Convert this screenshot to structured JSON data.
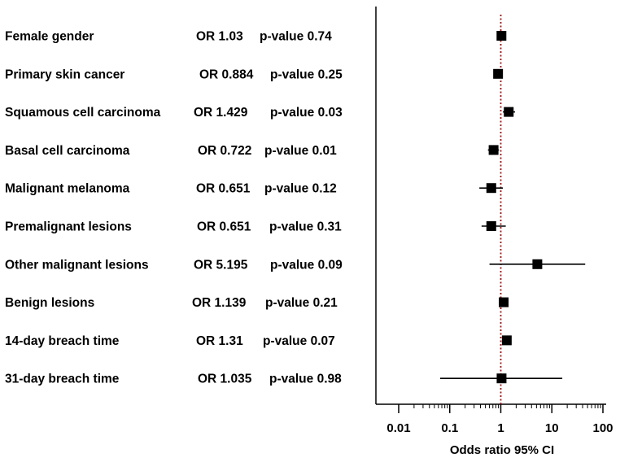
{
  "chart_data": {
    "type": "forest",
    "xlabel": "Odds ratio 95% CI",
    "xscale": "log",
    "xlim": [
      0.01,
      100
    ],
    "major_ticks": [
      0.01,
      0.1,
      1,
      10,
      100
    ],
    "tick_labels": [
      "0.01",
      "0.1",
      "1",
      "10",
      "100"
    ],
    "reference_line": 1,
    "reference_line_color": "#8b1a1a",
    "marker_color": "#000000",
    "rows": [
      {
        "label": "Female gender",
        "or_text": "OR 1.03",
        "p_text": "p-value 0.74",
        "or": 1.03,
        "ci": [
          0.97,
          1.1
        ]
      },
      {
        "label": "Primary skin cancer",
        "or_text": "OR 0.884",
        "p_text": "p-value 0.25",
        "or": 0.884,
        "ci": [
          0.8,
          0.97
        ]
      },
      {
        "label": "Squamous cell carcinoma",
        "or_text": "OR 1.429",
        "p_text": "p-value 0.03",
        "or": 1.429,
        "ci": [
          1.1,
          1.9
        ]
      },
      {
        "label": "Basal cell carcinoma",
        "or_text": "OR 0.722",
        "p_text": "p-value 0.01",
        "or": 0.722,
        "ci": [
          0.56,
          0.92
        ]
      },
      {
        "label": "Malignant melanoma",
        "or_text": "OR 0.651",
        "p_text": "p-value 0.12",
        "or": 0.651,
        "ci": [
          0.38,
          1.1
        ]
      },
      {
        "label": "Premalignant lesions",
        "or_text": "OR 0.651",
        "p_text": "p-value 0.31",
        "or": 0.651,
        "ci": [
          0.42,
          1.25
        ]
      },
      {
        "label": "Other malignant lesions",
        "or_text": "OR 5.195",
        "p_text": "p-value 0.09",
        "or": 5.195,
        "ci": [
          0.6,
          45.0
        ]
      },
      {
        "label": "Benign lesions",
        "or_text": "OR 1.139",
        "p_text": "p-value 0.21",
        "or": 1.139,
        "ci": [
          1.0,
          1.3
        ]
      },
      {
        "label": "14-day breach time",
        "or_text": "OR 1.31",
        "p_text": "p-value 0.07",
        "or": 1.31,
        "ci": [
          1.1,
          1.6
        ]
      },
      {
        "label": "31-day breach time",
        "or_text": "OR 1.035",
        "p_text": "p-value 0.98",
        "or": 1.035,
        "ci": [
          0.065,
          16.0
        ]
      }
    ]
  }
}
